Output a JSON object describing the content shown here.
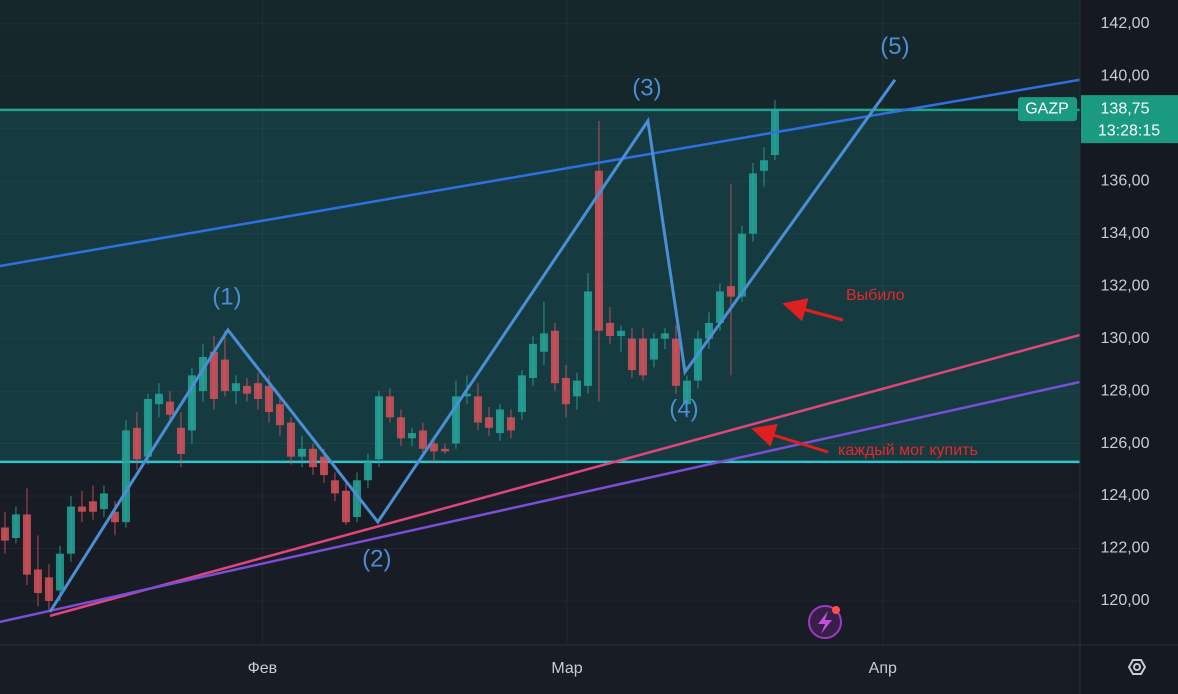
{
  "chart_data": {
    "type": "candlestick",
    "ticker": "GAZP",
    "last_price_label": "138,75",
    "time": "13:28:15",
    "up_color": "#26a69a",
    "down_color": "#d5525c",
    "xlim": [
      -0.45,
      97.73
    ],
    "ylim": [
      118.32,
      142.91
    ],
    "xticks": [
      {
        "value": 23.4,
        "label": "Фев"
      },
      {
        "value": 51.1,
        "label": "Мар"
      },
      {
        "value": 79.8,
        "label": "Апр"
      }
    ],
    "yticks": [
      {
        "value": 120,
        "label": "120,00"
      },
      {
        "value": 122,
        "label": "122,00"
      },
      {
        "value": 124,
        "label": "124,00"
      },
      {
        "value": 126,
        "label": "126,00"
      },
      {
        "value": 128,
        "label": "128,00"
      },
      {
        "value": 130,
        "label": "130,00"
      },
      {
        "value": 132,
        "label": "132,00"
      },
      {
        "value": 134,
        "label": "134,00"
      },
      {
        "value": 136,
        "label": "136,00"
      },
      {
        "value": 138,
        "label": "138,00"
      },
      {
        "value": 140,
        "label": "140,00"
      },
      {
        "value": 142,
        "label": "142,00"
      }
    ],
    "levels": [
      {
        "value": 138.72,
        "color": "#1fa58f"
      },
      {
        "value": 125.3,
        "color": "#2ec4d0"
      }
    ],
    "trend_lines": [
      {
        "x": [
          -0.45,
          97.73
        ],
        "y": [
          132.77,
          139.87
        ],
        "color": "#2f6fe0"
      },
      {
        "x": [
          4.09,
          97.73
        ],
        "y": [
          119.43,
          130.14
        ],
        "color": "#e0457b"
      },
      {
        "x": [
          -0.45,
          97.73
        ],
        "y": [
          119.2,
          128.35
        ],
        "color": "#7a4fd6"
      }
    ],
    "waves": {
      "color": "#4a8fd4",
      "points": [
        {
          "x": 4.09,
          "y": 119.58
        },
        {
          "x": 20.27,
          "y": 130.33,
          "label": "(1)"
        },
        {
          "x": 33.9,
          "y": 123.01,
          "label": "(2)"
        },
        {
          "x": 58.45,
          "y": 138.3,
          "label": "(3)"
        },
        {
          "x": 61.82,
          "y": 128.73,
          "label": "(4)"
        },
        {
          "x": 80.91,
          "y": 139.87,
          "label": "(5)"
        }
      ]
    },
    "annotations": [
      "Выбило",
      "каждый мог купить"
    ],
    "candles": [
      {
        "x": 0,
        "open": 122.8,
        "high": 123.4,
        "low": 121.8,
        "close": 122.3
      },
      {
        "x": 1,
        "open": 122.4,
        "high": 123.6,
        "low": 122.2,
        "close": 123.3
      },
      {
        "x": 2,
        "open": 123.3,
        "high": 124.3,
        "low": 120.6,
        "close": 121.0
      },
      {
        "x": 3,
        "open": 121.2,
        "high": 122.5,
        "low": 119.8,
        "close": 120.3
      },
      {
        "x": 4,
        "open": 120.9,
        "high": 121.4,
        "low": 119.6,
        "close": 120.0
      },
      {
        "x": 5,
        "open": 120.4,
        "high": 122.1,
        "low": 120.0,
        "close": 121.8
      },
      {
        "x": 6,
        "open": 121.8,
        "high": 124.0,
        "low": 121.5,
        "close": 123.6
      },
      {
        "x": 7,
        "open": 123.6,
        "high": 124.2,
        "low": 123.0,
        "close": 123.4
      },
      {
        "x": 8,
        "open": 123.8,
        "high": 124.4,
        "low": 123.1,
        "close": 123.4
      },
      {
        "x": 9,
        "open": 123.5,
        "high": 124.4,
        "low": 123.2,
        "close": 124.1
      },
      {
        "x": 10,
        "open": 123.4,
        "high": 123.8,
        "low": 122.5,
        "close": 123.0
      },
      {
        "x": 11,
        "open": 123.0,
        "high": 126.9,
        "low": 122.8,
        "close": 126.5
      },
      {
        "x": 12,
        "open": 126.6,
        "high": 127.2,
        "low": 125.0,
        "close": 125.4
      },
      {
        "x": 13,
        "open": 125.5,
        "high": 127.9,
        "low": 125.2,
        "close": 127.7
      },
      {
        "x": 14,
        "open": 127.5,
        "high": 128.3,
        "low": 127.0,
        "close": 127.9
      },
      {
        "x": 15,
        "open": 127.6,
        "high": 128.0,
        "low": 126.8,
        "close": 127.1
      },
      {
        "x": 16,
        "open": 126.6,
        "high": 127.2,
        "low": 125.1,
        "close": 125.6
      },
      {
        "x": 17,
        "open": 126.5,
        "high": 128.9,
        "low": 126.0,
        "close": 128.6
      },
      {
        "x": 18,
        "open": 128.0,
        "high": 129.8,
        "low": 127.6,
        "close": 129.3
      },
      {
        "x": 19,
        "open": 129.5,
        "high": 130.1,
        "low": 127.3,
        "close": 127.7
      },
      {
        "x": 20,
        "open": 129.2,
        "high": 130.3,
        "low": 127.8,
        "close": 128.0
      },
      {
        "x": 21,
        "open": 128.0,
        "high": 128.6,
        "low": 127.5,
        "close": 128.3
      },
      {
        "x": 22,
        "open": 128.2,
        "high": 128.5,
        "low": 127.6,
        "close": 127.9
      },
      {
        "x": 23,
        "open": 128.3,
        "high": 128.7,
        "low": 127.3,
        "close": 127.7
      },
      {
        "x": 24,
        "open": 128.2,
        "high": 128.6,
        "low": 126.8,
        "close": 127.2
      },
      {
        "x": 25,
        "open": 127.5,
        "high": 127.9,
        "low": 126.3,
        "close": 126.7
      },
      {
        "x": 26,
        "open": 126.8,
        "high": 127.0,
        "low": 125.2,
        "close": 125.5
      },
      {
        "x": 27,
        "open": 125.5,
        "high": 126.3,
        "low": 125.1,
        "close": 125.8
      },
      {
        "x": 28,
        "open": 125.8,
        "high": 126.0,
        "low": 124.8,
        "close": 125.1
      },
      {
        "x": 29,
        "open": 125.5,
        "high": 125.8,
        "low": 124.5,
        "close": 124.8
      },
      {
        "x": 30,
        "open": 124.6,
        "high": 124.9,
        "low": 123.8,
        "close": 124.1
      },
      {
        "x": 31,
        "open": 124.2,
        "high": 124.5,
        "low": 122.9,
        "close": 123.0
      },
      {
        "x": 32,
        "open": 123.2,
        "high": 124.9,
        "low": 123.0,
        "close": 124.6
      },
      {
        "x": 33,
        "open": 124.6,
        "high": 125.6,
        "low": 124.3,
        "close": 125.3
      },
      {
        "x": 34,
        "open": 125.4,
        "high": 128.0,
        "low": 125.1,
        "close": 127.8
      },
      {
        "x": 35,
        "open": 127.8,
        "high": 128.1,
        "low": 126.8,
        "close": 127.0
      },
      {
        "x": 36,
        "open": 127.0,
        "high": 127.3,
        "low": 125.9,
        "close": 126.2
      },
      {
        "x": 37,
        "open": 126.2,
        "high": 126.6,
        "low": 125.9,
        "close": 126.4
      },
      {
        "x": 38,
        "open": 126.5,
        "high": 126.8,
        "low": 125.5,
        "close": 125.8
      },
      {
        "x": 39,
        "open": 126.0,
        "high": 126.3,
        "low": 125.3,
        "close": 125.7
      },
      {
        "x": 40,
        "open": 125.8,
        "high": 126.0,
        "low": 125.6,
        "close": 125.7
      },
      {
        "x": 41,
        "open": 126.0,
        "high": 128.4,
        "low": 125.8,
        "close": 127.8
      },
      {
        "x": 42,
        "open": 127.8,
        "high": 128.6,
        "low": 127.5,
        "close": 127.9
      },
      {
        "x": 43,
        "open": 127.8,
        "high": 128.3,
        "low": 126.5,
        "close": 126.8
      },
      {
        "x": 44,
        "open": 127.0,
        "high": 127.4,
        "low": 126.3,
        "close": 126.6
      },
      {
        "x": 45,
        "open": 126.4,
        "high": 127.5,
        "low": 126.1,
        "close": 127.3
      },
      {
        "x": 46,
        "open": 127.0,
        "high": 127.3,
        "low": 126.2,
        "close": 126.5
      },
      {
        "x": 47,
        "open": 127.2,
        "high": 128.8,
        "low": 126.9,
        "close": 128.6
      },
      {
        "x": 48,
        "open": 128.5,
        "high": 130.1,
        "low": 128.2,
        "close": 129.8
      },
      {
        "x": 49,
        "open": 129.5,
        "high": 131.4,
        "low": 129.0,
        "close": 130.2
      },
      {
        "x": 50,
        "open": 130.3,
        "high": 130.6,
        "low": 128.0,
        "close": 128.3
      },
      {
        "x": 51,
        "open": 128.5,
        "high": 129.0,
        "low": 127.0,
        "close": 127.5
      },
      {
        "x": 52,
        "open": 127.8,
        "high": 128.7,
        "low": 127.3,
        "close": 128.4
      },
      {
        "x": 53,
        "open": 128.2,
        "high": 132.5,
        "low": 127.9,
        "close": 131.8
      },
      {
        "x": 54,
        "open": 136.4,
        "high": 138.3,
        "low": 127.6,
        "close": 130.3
      },
      {
        "x": 55,
        "open": 130.6,
        "high": 131.2,
        "low": 129.8,
        "close": 130.1
      },
      {
        "x": 56,
        "open": 130.1,
        "high": 130.5,
        "low": 129.5,
        "close": 130.3
      },
      {
        "x": 57,
        "open": 130.0,
        "high": 130.4,
        "low": 128.5,
        "close": 128.8
      },
      {
        "x": 58,
        "open": 130.0,
        "high": 130.4,
        "low": 128.4,
        "close": 128.6
      },
      {
        "x": 59,
        "open": 129.2,
        "high": 130.2,
        "low": 128.9,
        "close": 130.0
      },
      {
        "x": 60,
        "open": 130.0,
        "high": 130.4,
        "low": 129.6,
        "close": 130.2
      },
      {
        "x": 61,
        "open": 130.0,
        "high": 130.5,
        "low": 127.9,
        "close": 128.2
      },
      {
        "x": 62,
        "open": 127.5,
        "high": 128.6,
        "low": 127.0,
        "close": 128.4
      },
      {
        "x": 63,
        "open": 128.4,
        "high": 130.3,
        "low": 128.1,
        "close": 130.0
      },
      {
        "x": 64,
        "open": 130.0,
        "high": 131.0,
        "low": 129.6,
        "close": 130.6
      },
      {
        "x": 65,
        "open": 130.6,
        "high": 132.1,
        "low": 130.3,
        "close": 131.8
      },
      {
        "x": 66,
        "open": 132.0,
        "high": 135.9,
        "low": 128.6,
        "close": 131.6
      },
      {
        "x": 67,
        "open": 131.6,
        "high": 134.3,
        "low": 131.4,
        "close": 134.0
      },
      {
        "x": 68,
        "open": 134.0,
        "high": 136.7,
        "low": 133.7,
        "close": 136.3
      },
      {
        "x": 69,
        "open": 136.4,
        "high": 137.3,
        "low": 135.8,
        "close": 136.8
      },
      {
        "x": 70,
        "open": 137.0,
        "high": 139.1,
        "low": 136.8,
        "close": 138.75
      }
    ]
  }
}
